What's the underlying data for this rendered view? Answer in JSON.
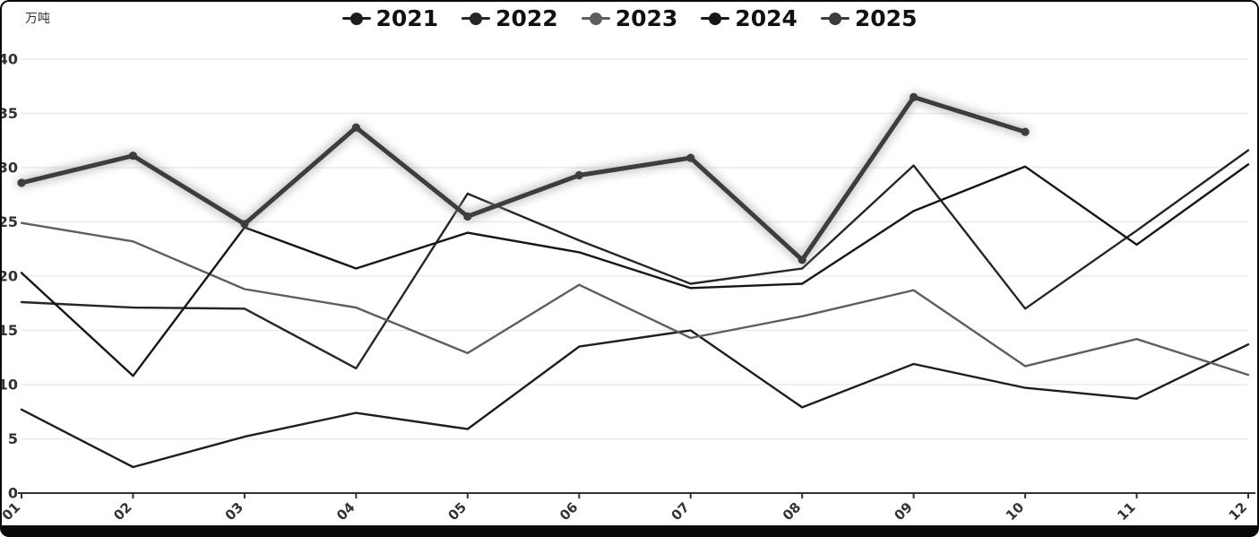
{
  "y_axis_unit": "万吨",
  "legend": {
    "items": [
      "2021",
      "2022",
      "2023",
      "2024",
      "2025"
    ]
  },
  "chart_data": {
    "type": "line",
    "title": "",
    "xlabel": "",
    "ylabel": "万吨",
    "categories": [
      "01",
      "02",
      "03",
      "04",
      "05",
      "06",
      "07",
      "08",
      "09",
      "10",
      "11",
      "12"
    ],
    "ylim": [
      0,
      40
    ],
    "y_ticks": [
      0,
      5,
      10,
      15,
      20,
      25,
      30,
      35,
      40
    ],
    "grid": true,
    "legend_position": "top",
    "series": [
      {
        "name": "2021",
        "color": "#1e1e1e",
        "width": 2.4,
        "highlight": false,
        "values": [
          7.7,
          2.4,
          5.2,
          7.4,
          5.9,
          13.5,
          15.0,
          7.9,
          11.9,
          9.7,
          8.7,
          13.7
        ]
      },
      {
        "name": "2022",
        "color": "#262626",
        "width": 2.4,
        "highlight": false,
        "values": [
          17.6,
          17.1,
          17.0,
          11.5,
          27.6,
          23.3,
          19.3,
          20.7,
          30.2,
          17.0,
          24.2,
          31.6
        ]
      },
      {
        "name": "2023",
        "color": "#5e5e5e",
        "width": 2.4,
        "highlight": false,
        "values": [
          24.9,
          23.2,
          18.8,
          17.1,
          12.9,
          19.2,
          14.3,
          16.3,
          18.7,
          11.7,
          14.2,
          10.9
        ]
      },
      {
        "name": "2024",
        "color": "#161616",
        "width": 2.4,
        "highlight": false,
        "values": [
          20.3,
          10.8,
          24.5,
          20.7,
          24.0,
          22.2,
          18.9,
          19.3,
          26.0,
          30.1,
          22.9,
          30.3
        ]
      },
      {
        "name": "2025",
        "color": "#3d3d3d",
        "width": 5,
        "highlight": true,
        "values": [
          28.6,
          31.1,
          24.8,
          33.7,
          25.5,
          29.3,
          30.9,
          21.5,
          36.5,
          33.3,
          null,
          null
        ]
      }
    ]
  },
  "style": {
    "grid_color": "#e7e7e7",
    "axis_color": "#333333",
    "tick_label_color": "#333333"
  }
}
